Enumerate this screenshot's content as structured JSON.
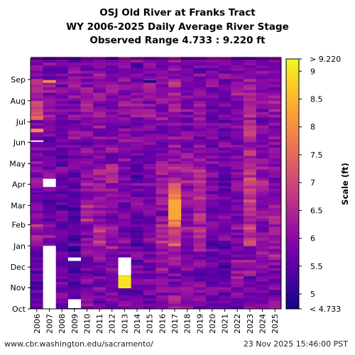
{
  "page": {
    "title_lines": [
      "OSJ Old River at Franks Tract",
      "WY 2006-2025 Daily Average River Stage",
      "Observed Range 4.733 : 9.220 ft"
    ],
    "footer_left": "www.cbr.washington.edu/sacramento/",
    "footer_right": "23 Nov 2025 15:46:00 PST"
  },
  "chart_data": {
    "type": "heatmap",
    "title": "OSJ Old River at Franks Tract",
    "subtitle": "WY 2006-2025 Daily Average River Stage",
    "x": [
      "2006",
      "2007",
      "2008",
      "2009",
      "2010",
      "2011",
      "2012",
      "2013",
      "2014",
      "2015",
      "2016",
      "2017",
      "2018",
      "2019",
      "2020",
      "2021",
      "2022",
      "2023",
      "2024",
      "2025"
    ],
    "y_month_ticks": [
      "Oct",
      "Nov",
      "Dec",
      "Jan",
      "Feb",
      "Mar",
      "Apr",
      "May",
      "Jun",
      "Jul",
      "Aug",
      "Sep"
    ],
    "y_order": "Oct at bottom, Sep at top (water year)",
    "colorbar": {
      "label": "Scale (ft)",
      "min": 4.733,
      "max": 9.22,
      "tick_values": [
        5,
        5.5,
        6,
        6.5,
        7,
        7.5,
        8,
        8.5,
        9
      ],
      "tick_labels": [
        "5",
        "5.5",
        "6",
        "6.5",
        "7",
        "7.5",
        "8",
        "8.5",
        "9"
      ],
      "top_label": "> 9.220",
      "bottom_label": "< 4.733",
      "colormap": "plasma"
    },
    "monthly_mean_stage_ft": [
      [
        5.6,
        5.6,
        5.7,
        6.3,
        6.0,
        5.9,
        6.0,
        5.9,
        6.0,
        7.4,
        6.5,
        5.9
      ],
      [
        5.8,
        5.8,
        5.7,
        5.9,
        5.7,
        5.6,
        5.7,
        5.6,
        5.8,
        6.1,
        6.0,
        5.8
      ],
      [
        5.6,
        5.5,
        5.7,
        5.6,
        5.6,
        5.6,
        5.6,
        5.6,
        5.8,
        5.9,
        5.9,
        5.8
      ],
      [
        5.5,
        5.6,
        5.5,
        5.6,
        5.5,
        5.8,
        5.7,
        5.7,
        5.8,
        6.0,
        5.9,
        5.8
      ],
      [
        5.8,
        5.8,
        5.8,
        6.0,
        6.4,
        6.2,
        6.0,
        5.9,
        5.9,
        6.0,
        6.0,
        5.9
      ],
      [
        5.8,
        5.7,
        5.9,
        6.6,
        6.0,
        6.3,
        6.3,
        6.0,
        5.9,
        6.0,
        6.0,
        5.9
      ],
      [
        5.8,
        5.8,
        6.1,
        6.0,
        5.9,
        6.0,
        6.6,
        6.0,
        5.8,
        5.9,
        6.0,
        5.9
      ],
      [
        5.7,
        8.3,
        5.9,
        5.9,
        5.8,
        5.8,
        5.8,
        5.8,
        5.9,
        6.0,
        6.0,
        5.9
      ],
      [
        5.6,
        5.7,
        5.7,
        5.6,
        5.7,
        5.8,
        5.6,
        5.7,
        5.8,
        6.0,
        6.0,
        5.8
      ],
      [
        5.6,
        5.8,
        5.9,
        5.8,
        5.8,
        5.7,
        5.8,
        5.8,
        5.9,
        6.0,
        6.6,
        5.8
      ],
      [
        6.1,
        6.0,
        6.0,
        6.3,
        6.1,
        6.3,
        6.1,
        6.0,
        5.9,
        6.0,
        6.0,
        5.9
      ],
      [
        6.0,
        5.9,
        6.2,
        7.2,
        7.6,
        7.4,
        6.6,
        6.3,
        6.1,
        6.2,
        6.2,
        6.0
      ],
      [
        5.9,
        5.9,
        5.9,
        6.0,
        5.9,
        6.1,
        6.3,
        6.0,
        5.9,
        6.0,
        6.0,
        5.9
      ],
      [
        5.8,
        5.8,
        6.0,
        6.3,
        6.5,
        6.6,
        6.3,
        6.1,
        6.0,
        6.0,
        6.0,
        5.9
      ],
      [
        5.8,
        5.8,
        5.8,
        5.7,
        5.7,
        5.7,
        5.8,
        5.8,
        5.9,
        5.9,
        5.9,
        5.8
      ],
      [
        5.6,
        5.6,
        5.6,
        5.7,
        5.6,
        5.6,
        5.7,
        5.7,
        5.7,
        5.8,
        5.8,
        5.8
      ],
      [
        5.8,
        6.2,
        5.9,
        6.0,
        5.8,
        5.8,
        5.9,
        5.8,
        5.8,
        5.9,
        6.0,
        5.9
      ],
      [
        5.9,
        5.9,
        6.1,
        6.8,
        6.6,
        6.7,
        6.7,
        6.4,
        6.6,
        6.3,
        6.2,
        6.0
      ],
      [
        5.9,
        5.9,
        6.0,
        6.1,
        6.0,
        6.0,
        6.1,
        6.0,
        6.0,
        6.0,
        6.0,
        5.9
      ],
      [
        5.9,
        5.9,
        6.2,
        6.2,
        6.2,
        6.0,
        6.1,
        5.9,
        6.0,
        6.0,
        6.0,
        5.9
      ]
    ],
    "missing_days": [
      {
        "year": "2006",
        "doy_start": 244,
        "doy_end": 246
      },
      {
        "year": "2007",
        "doy_start": 0,
        "doy_end": 92
      },
      {
        "year": "2007",
        "doy_start": 178,
        "doy_end": 190
      },
      {
        "year": "2009",
        "doy_start": 70,
        "doy_end": 75
      },
      {
        "year": "2009",
        "doy_start": 1,
        "doy_end": 14
      },
      {
        "year": "2013",
        "doy_start": 49,
        "doy_end": 75
      }
    ],
    "highlight_days": [
      {
        "year": "2006",
        "doy_start": 258,
        "doy_end": 263,
        "value": 8.0
      },
      {
        "year": "2006",
        "doy_start": 170,
        "doy_end": 172,
        "value": 5.9
      },
      {
        "year": "2007",
        "doy_start": 8,
        "doy_end": 10,
        "value": 7.2
      },
      {
        "year": "2007",
        "doy_start": 330,
        "doy_end": 334,
        "value": 8.0
      },
      {
        "year": "2006",
        "doy_start": 277,
        "doy_end": 282,
        "value": 7.5
      },
      {
        "year": "2013",
        "doy_start": 30,
        "doy_end": 48,
        "value": 9.0
      },
      {
        "year": "2015",
        "doy_start": 330,
        "doy_end": 334,
        "value": 4.9
      },
      {
        "year": "2017",
        "doy_start": 130,
        "doy_end": 160,
        "value": 8.3
      }
    ]
  }
}
